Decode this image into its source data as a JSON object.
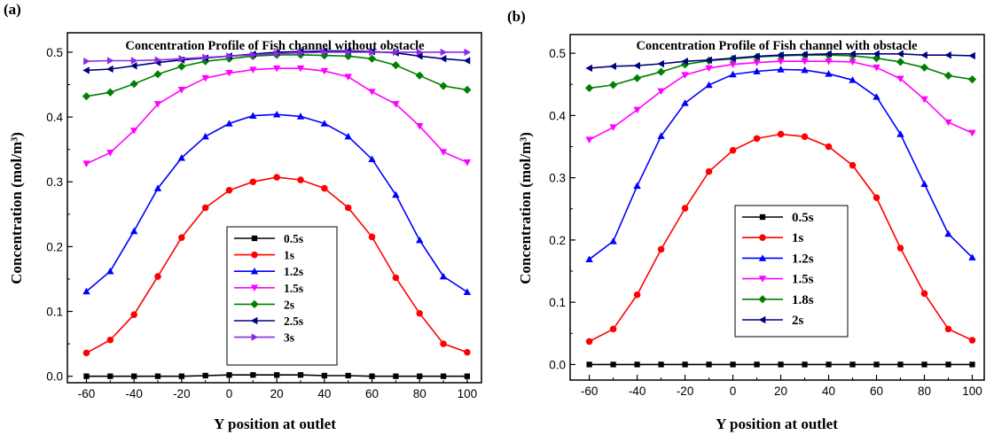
{
  "chart_data": [
    {
      "type": "line",
      "panel_label": "(a)",
      "title": "Concentration Profile of Fish channel without obstacle",
      "xlabel": "Y position at outlet",
      "ylabel": "Concentration (mol/m³)",
      "xlim": [
        -68,
        106
      ],
      "ylim": [
        -0.01,
        0.53
      ],
      "xticks": [
        -60,
        -40,
        -20,
        0,
        20,
        40,
        60,
        80,
        100
      ],
      "yticks": [
        0.0,
        0.1,
        0.2,
        0.3,
        0.4,
        0.5
      ],
      "ytick_labels": [
        "0.0",
        "0.1",
        "0.2",
        "0.3",
        "0.4",
        "0.5"
      ],
      "legend_position": "bottom-center",
      "x": [
        -60,
        -50,
        -40,
        -30,
        -20,
        -10,
        0,
        10,
        20,
        30,
        40,
        50,
        60,
        70,
        80,
        90,
        100
      ],
      "series": [
        {
          "name": "0.5s",
          "color": "#000000",
          "marker": "square",
          "values": [
            0,
            0,
            0,
            0,
            0,
            0.001,
            0.002,
            0.002,
            0.002,
            0.002,
            0.001,
            0.001,
            0,
            0,
            0,
            0,
            0
          ]
        },
        {
          "name": "1s",
          "color": "#ff0000",
          "marker": "circle",
          "values": [
            0.036,
            0.056,
            0.095,
            0.154,
            0.214,
            0.26,
            0.287,
            0.3,
            0.307,
            0.303,
            0.29,
            0.26,
            0.215,
            0.152,
            0.097,
            0.05,
            0.037
          ]
        },
        {
          "name": "1.2s",
          "color": "#0000ff",
          "marker": "triangle-up",
          "values": [
            0.131,
            0.162,
            0.224,
            0.29,
            0.337,
            0.37,
            0.39,
            0.402,
            0.404,
            0.401,
            0.39,
            0.37,
            0.335,
            0.28,
            0.21,
            0.154,
            0.13
          ]
        },
        {
          "name": "1.5s",
          "color": "#ff00ff",
          "marker": "triangle-down",
          "values": [
            0.328,
            0.345,
            0.379,
            0.42,
            0.442,
            0.46,
            0.468,
            0.473,
            0.475,
            0.475,
            0.471,
            0.462,
            0.439,
            0.42,
            0.386,
            0.346,
            0.33
          ]
        },
        {
          "name": "2s",
          "color": "#008000",
          "marker": "diamond",
          "values": [
            0.432,
            0.438,
            0.451,
            0.466,
            0.478,
            0.486,
            0.49,
            0.494,
            0.496,
            0.496,
            0.495,
            0.494,
            0.49,
            0.48,
            0.464,
            0.448,
            0.442
          ]
        },
        {
          "name": "2.5s",
          "color": "#000080",
          "marker": "triangle-left",
          "values": [
            0.472,
            0.474,
            0.479,
            0.484,
            0.488,
            0.491,
            0.494,
            0.497,
            0.5,
            0.501,
            0.502,
            0.502,
            0.501,
            0.499,
            0.494,
            0.49,
            0.487
          ]
        },
        {
          "name": "3s",
          "color": "#8a2be2",
          "marker": "triangle-right",
          "values": [
            0.486,
            0.487,
            0.487,
            0.488,
            0.49,
            0.492,
            0.494,
            0.496,
            0.498,
            0.499,
            0.5,
            0.5,
            0.5,
            0.5,
            0.5,
            0.5,
            0.5
          ]
        }
      ]
    },
    {
      "type": "line",
      "panel_label": "(b)",
      "title": "Concentration Profile of Fish channel with obstacle",
      "xlabel": "Y position at outlet",
      "ylabel": "Concentration (mol/m³)",
      "xlim": [
        -68,
        105
      ],
      "ylim": [
        -0.025,
        0.53
      ],
      "xticks": [
        -60,
        -40,
        -20,
        0,
        20,
        40,
        60,
        80,
        100
      ],
      "yticks": [
        0.0,
        0.1,
        0.2,
        0.3,
        0.4,
        0.5
      ],
      "ytick_labels": [
        "0.0",
        "0.1",
        "0.2",
        "0.3",
        "0.4",
        "0.5"
      ],
      "legend_position": "center",
      "x": [
        -60,
        -50,
        -40,
        -30,
        -20,
        -10,
        0,
        10,
        20,
        30,
        40,
        50,
        60,
        70,
        80,
        90,
        100
      ],
      "series": [
        {
          "name": "0.5s",
          "color": "#000000",
          "marker": "square",
          "values": [
            0,
            0,
            0,
            0,
            0,
            0,
            0,
            0,
            0,
            0,
            0,
            0,
            0,
            0,
            0,
            0,
            0
          ]
        },
        {
          "name": "1s",
          "color": "#ff0000",
          "marker": "circle",
          "values": [
            0.037,
            0.057,
            0.112,
            0.185,
            0.251,
            0.31,
            0.344,
            0.363,
            0.37,
            0.366,
            0.35,
            0.32,
            0.268,
            0.187,
            0.114,
            0.057,
            0.039
          ]
        },
        {
          "name": "1.2s",
          "color": "#0000ff",
          "marker": "triangle-up",
          "values": [
            0.169,
            0.198,
            0.287,
            0.367,
            0.42,
            0.449,
            0.466,
            0.471,
            0.474,
            0.473,
            0.467,
            0.457,
            0.43,
            0.37,
            0.29,
            0.21,
            0.172
          ]
        },
        {
          "name": "1.5s",
          "color": "#ff00ff",
          "marker": "triangle-down",
          "values": [
            0.361,
            0.381,
            0.409,
            0.439,
            0.465,
            0.476,
            0.482,
            0.485,
            0.487,
            0.487,
            0.487,
            0.486,
            0.477,
            0.459,
            0.426,
            0.389,
            0.372
          ]
        },
        {
          "name": "1.8s",
          "color": "#008000",
          "marker": "diamond",
          "values": [
            0.444,
            0.449,
            0.46,
            0.47,
            0.482,
            0.488,
            0.491,
            0.494,
            0.496,
            0.497,
            0.497,
            0.496,
            0.492,
            0.486,
            0.477,
            0.464,
            0.458
          ]
        },
        {
          "name": "2s",
          "color": "#000080",
          "marker": "triangle-left",
          "values": [
            0.476,
            0.479,
            0.48,
            0.483,
            0.487,
            0.489,
            0.492,
            0.495,
            0.497,
            0.498,
            0.499,
            0.499,
            0.499,
            0.499,
            0.497,
            0.497,
            0.496
          ]
        }
      ]
    }
  ]
}
